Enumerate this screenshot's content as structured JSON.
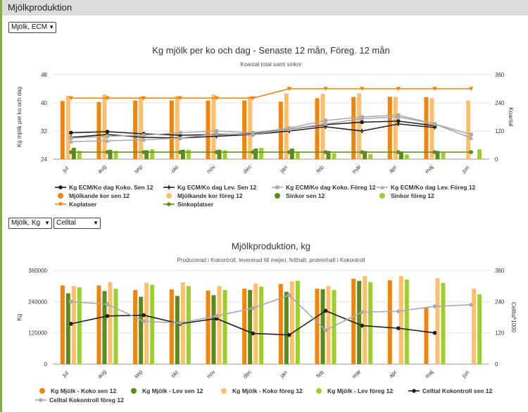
{
  "header": {
    "title": "Mjölkproduktion"
  },
  "selects": {
    "chart1_unit": "Mjölk, ECM",
    "chart2_unit": "Mjölk, Kg",
    "chart2_measure": "Celltal"
  },
  "colors": {
    "orange": "#f0850a",
    "lightOrange": "#fbbf6e",
    "darkGreen": "#5d8a1f",
    "lightGreen": "#9ccf2c",
    "black": "#1f1f1f",
    "gray": "#aaaaaa",
    "accent": "#7cb342"
  },
  "months": [
    "jul",
    "aug",
    "sep",
    "okt",
    "nov",
    "dec",
    "jan",
    "feb",
    "mar",
    "apr",
    "maj",
    "jun"
  ],
  "chart1": {
    "title": "Kg mjölk per ko och dag - Senaste 12 mån, Föreg. 12 mån",
    "subtitle": "Koantal total samt sinkor",
    "ylabel_left": "Kg mjölk per ko och dag",
    "ylabel_right": "Koantal",
    "left_ticks": [
      "24",
      "32",
      "40",
      "48"
    ],
    "right_ticks": [
      "0",
      "120",
      "240",
      "360"
    ]
  },
  "chart2": {
    "title": "Mjölkproduktion, kg",
    "subtitle": "Producerad i Kokontroll, levererad till mejeri, fetthalt, proteinhalt i Kokontroll",
    "ylabel_left": "Kg",
    "ylabel_right": "Celltal*1000",
    "left_ticks": [
      "0",
      "120000",
      "240000",
      "360000"
    ],
    "right_ticks": [
      "0",
      "120",
      "240",
      "360"
    ]
  },
  "chart_data": [
    {
      "type": "bar",
      "title": "Kg mjölk per ko och dag - Senaste 12 mån, Föreg. 12 mån",
      "subtitle": "Koantal total samt sinkor",
      "categories": [
        "jul",
        "aug",
        "sep",
        "okt",
        "nov",
        "dec",
        "jan",
        "feb",
        "mar",
        "apr",
        "maj",
        "jun"
      ],
      "ylabel": "Kg mjölk per ko och dag",
      "ylim": [
        24,
        48
      ],
      "y2label": "Koantal",
      "y2lim": [
        0,
        360
      ],
      "grid": true,
      "legend": "bottom",
      "series": [
        {
          "name": "Kg ECM/Ko dag Koko. Sen 12",
          "kind": "line",
          "axis": "left",
          "color": "#1f1f1f",
          "marker": "circle",
          "values": [
            31.5,
            31.8,
            31.2,
            30.8,
            31.0,
            31.2,
            32.5,
            33.8,
            34.5,
            34.8,
            33.5,
            null
          ]
        },
        {
          "name": "Kg ECM/Ko dag Lev. Sen 12",
          "kind": "line",
          "axis": "left",
          "color": "#1f1f1f",
          "marker": "cross",
          "values": [
            30.2,
            31.0,
            30.2,
            30.0,
            30.5,
            31.0,
            32.0,
            33.2,
            32.0,
            34.0,
            33.0,
            null
          ]
        },
        {
          "name": "Kg ECM/Ko dag Koko. Föreg 12",
          "kind": "line",
          "axis": "left",
          "color": "#aaaaaa",
          "marker": "square",
          "values": [
            30.0,
            30.5,
            30.8,
            31.5,
            32.0,
            31.5,
            32.8,
            35.0,
            36.0,
            36.5,
            34.0,
            31.0
          ]
        },
        {
          "name": "Kg ECM/Ko dag Lev. Föreg 12",
          "kind": "line",
          "axis": "left",
          "color": "#aaaaaa",
          "marker": "triangle",
          "values": [
            29.0,
            29.2,
            29.5,
            30.0,
            31.2,
            31.0,
            32.5,
            34.0,
            35.5,
            36.0,
            34.0,
            30.0
          ]
        },
        {
          "name": "Mjölkande kor sen 12",
          "kind": "bar",
          "axis": "right",
          "color": "#f0850a",
          "values": [
            248,
            243,
            250,
            250,
            250,
            250,
            245,
            260,
            265,
            266,
            264,
            null
          ]
        },
        {
          "name": "Mjölkande kor föreg 12",
          "kind": "bar",
          "axis": "right",
          "color": "#fbbf6e",
          "values": [
            270,
            275,
            268,
            270,
            275,
            268,
            280,
            278,
            280,
            265,
            260,
            250
          ]
        },
        {
          "name": "Sinkor sen 12",
          "kind": "bar",
          "axis": "right",
          "color": "#5d8a1f",
          "values": [
            48,
            40,
            38,
            40,
            40,
            45,
            45,
            35,
            35,
            33,
            35,
            null
          ]
        },
        {
          "name": "Sinkor föreg 12",
          "kind": "bar",
          "axis": "right",
          "color": "#9ccf2c",
          "values": [
            35,
            35,
            42,
            40,
            38,
            48,
            32,
            25,
            22,
            20,
            28,
            42
          ]
        },
        {
          "name": "Koplatser",
          "kind": "line",
          "axis": "right",
          "color": "#f0850a",
          "marker": "tri-down",
          "values": [
            260,
            260,
            260,
            260,
            260,
            260,
            300,
            300,
            300,
            300,
            300,
            300
          ]
        },
        {
          "name": "Sinkoplatser",
          "kind": "line",
          "axis": "right",
          "color": "#5d8a1f",
          "marker": "circle",
          "values": [
            30,
            30,
            30,
            30,
            30,
            30,
            30,
            30,
            30,
            30,
            30,
            30
          ]
        }
      ]
    },
    {
      "type": "bar",
      "title": "Mjölkproduktion, kg",
      "subtitle": "Producerad i Kokontroll, levererad till mejeri, fetthalt, proteinhalt i Kokontroll",
      "categories": [
        "jul",
        "aug",
        "sep",
        "okt",
        "nov",
        "dec",
        "jan",
        "feb",
        "mar",
        "apr",
        "maj",
        "jun"
      ],
      "ylabel": "Kg",
      "ylim": [
        0,
        360000
      ],
      "y2label": "Celltal*1000",
      "y2lim": [
        0,
        360
      ],
      "grid": true,
      "legend": "bottom",
      "series": [
        {
          "name": "Kg Mjölk - Koko sen 12",
          "kind": "bar",
          "axis": "left",
          "color": "#f0850a",
          "values": [
            302000,
            302000,
            285000,
            287000,
            283000,
            290000,
            308000,
            290000,
            328000,
            322000,
            218000,
            null
          ]
        },
        {
          "name": "Kg Mjölk - Lev sen 12",
          "kind": "bar",
          "axis": "left",
          "color": "#5d8a1f",
          "values": [
            272000,
            281000,
            259000,
            262000,
            265000,
            285000,
            278000,
            288000,
            320000,
            null,
            null,
            null
          ]
        },
        {
          "name": "Kg Mjölk - Koko föreg 12",
          "kind": "bar",
          "axis": "left",
          "color": "#fbbf6e",
          "values": [
            300000,
            315000,
            312000,
            314000,
            300000,
            310000,
            318000,
            300000,
            338000,
            338000,
            330000,
            290000
          ]
        },
        {
          "name": "Kg Mjölk - Lev föreg 12",
          "kind": "bar",
          "axis": "left",
          "color": "#9ccf2c",
          "values": [
            295000,
            290000,
            305000,
            300000,
            285000,
            298000,
            320000,
            285000,
            315000,
            325000,
            312000,
            268000
          ]
        },
        {
          "name": "Celltal Kokontroll sen 12",
          "kind": "line",
          "axis": "right",
          "color": "#1f1f1f",
          "marker": "circle",
          "values": [
            155,
            185,
            188,
            155,
            175,
            118,
            112,
            205,
            148,
            138,
            120,
            null
          ]
        },
        {
          "name": "Celltal Kokontroll föreg 12",
          "kind": "line",
          "axis": "right",
          "color": "#aaaaaa",
          "marker": "circle",
          "values": [
            240,
            230,
            165,
            158,
            185,
            215,
            265,
            130,
            200,
            203,
            222,
            228
          ]
        }
      ]
    }
  ]
}
